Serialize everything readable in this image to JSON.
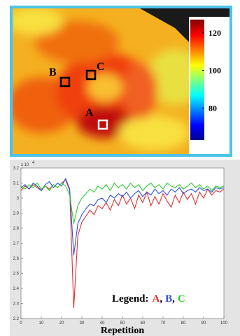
{
  "heatmap": {
    "markers": [
      "A",
      "B",
      "C"
    ],
    "colorbar": {
      "clim": [
        63,
        127
      ],
      "ticks": [
        80,
        100,
        120
      ]
    }
  },
  "chart_data": {
    "type": "line",
    "x_label": "Repetition",
    "y_multiplier": {
      "base": "x 10",
      "exponent": "4"
    },
    "x": [
      0,
      2,
      4,
      6,
      8,
      10,
      12,
      14,
      16,
      18,
      20,
      22,
      24,
      26,
      28,
      30,
      32,
      34,
      36,
      38,
      40,
      42,
      44,
      46,
      48,
      50,
      52,
      54,
      56,
      58,
      60,
      62,
      64,
      66,
      68,
      70,
      72,
      74,
      76,
      78,
      80,
      82,
      84,
      86,
      88,
      90,
      92,
      94,
      96,
      98,
      100
    ],
    "xlim": [
      0,
      100
    ],
    "xticks": [
      0,
      10,
      20,
      30,
      40,
      50,
      60,
      70,
      80,
      90,
      100
    ],
    "ylim": [
      2.2,
      3.2
    ],
    "yticks": [
      2.2,
      2.3,
      2.4,
      2.5,
      2.6,
      2.7,
      2.8,
      2.9,
      3,
      3.1,
      3.2
    ],
    "legend_title": "Legend:",
    "legend_separator": ",",
    "series": [
      {
        "name": "A",
        "color": "#e03030",
        "values": [
          3.05,
          3.08,
          3.06,
          3.09,
          3.07,
          3.05,
          3.08,
          3.06,
          3.09,
          3.07,
          3.1,
          3.12,
          3.05,
          2.27,
          2.75,
          2.84,
          2.88,
          2.92,
          2.89,
          2.95,
          2.93,
          2.97,
          2.92,
          2.99,
          2.95,
          3.02,
          2.96,
          3.0,
          2.93,
          3.02,
          2.97,
          3.04,
          2.95,
          3.01,
          2.96,
          3.03,
          2.98,
          2.94,
          3.02,
          2.97,
          3.04,
          2.99,
          3.03,
          2.96,
          3.04,
          3.0,
          3.06,
          3.02,
          3.05,
          3.04,
          3.06
        ]
      },
      {
        "name": "B",
        "color": "#3050e0",
        "values": [
          3.07,
          3.09,
          3.06,
          3.1,
          3.08,
          3.05,
          3.09,
          3.11,
          3.07,
          3.1,
          3.08,
          3.13,
          3.06,
          2.62,
          2.83,
          2.89,
          2.93,
          2.96,
          2.95,
          2.99,
          3.0,
          2.97,
          3.02,
          3.0,
          3.03,
          3.01,
          3.04,
          3.0,
          3.03,
          3.05,
          3.01,
          3.04,
          3.02,
          3.06,
          3.03,
          3.05,
          3.02,
          3.06,
          3.04,
          3.07,
          3.03,
          3.05,
          3.06,
          3.04,
          3.07,
          3.05,
          3.06,
          3.04,
          3.07,
          3.06,
          3.07
        ]
      },
      {
        "name": "C",
        "color": "#30d030",
        "values": [
          3.08,
          3.06,
          3.09,
          3.07,
          3.1,
          3.06,
          3.08,
          3.05,
          3.09,
          3.07,
          3.1,
          3.08,
          3.02,
          2.83,
          2.95,
          3.0,
          3.03,
          3.06,
          3.04,
          3.08,
          3.06,
          3.09,
          3.05,
          3.1,
          3.07,
          3.09,
          3.06,
          3.1,
          3.07,
          3.09,
          3.05,
          3.08,
          3.1,
          3.07,
          3.09,
          3.06,
          3.1,
          3.08,
          3.07,
          3.09,
          3.06,
          3.08,
          3.1,
          3.07,
          3.09,
          3.06,
          3.08,
          3.05,
          3.08,
          3.07,
          3.08
        ]
      }
    ]
  }
}
